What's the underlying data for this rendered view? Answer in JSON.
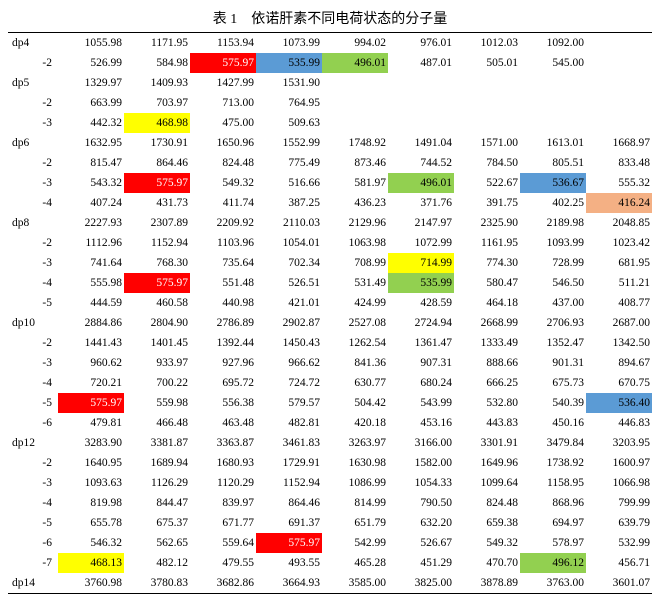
{
  "title": "表 1　依诺肝素不同电荷状态的分子量",
  "colors": {
    "red": "#ff0000",
    "green": "#92d050",
    "yellow": "#ffff00",
    "blue": "#5b9bd5",
    "peach": "#f4b084",
    "white_text": "#ffffff",
    "black_text": "#000000"
  },
  "rows": [
    {
      "label": "dp4",
      "top_border": true,
      "values": [
        "1055.98",
        "1171.95",
        "1153.94",
        "1073.99",
        "994.02",
        "976.01",
        "1012.03",
        "1092.00",
        ""
      ]
    },
    {
      "label": "-2",
      "values": [
        "526.99",
        "584.98",
        "575.97",
        "535.99",
        "496.01",
        "487.01",
        "505.01",
        "545.00",
        ""
      ],
      "hl": {
        "2": "red_w",
        "3": "blue",
        "4": "green"
      }
    },
    {
      "label": "dp5",
      "values": [
        "1329.97",
        "1409.93",
        "1427.99",
        "1531.90",
        "",
        "",
        "",
        "",
        ""
      ]
    },
    {
      "label": "-2",
      "values": [
        "663.99",
        "703.97",
        "713.00",
        "764.95",
        "",
        "",
        "",
        "",
        ""
      ]
    },
    {
      "label": "-3",
      "values": [
        "442.32",
        "468.98",
        "475.00",
        "509.63",
        "",
        "",
        "",
        "",
        ""
      ],
      "hl": {
        "1": "yellow"
      }
    },
    {
      "label": "dp6",
      "values": [
        "1632.95",
        "1730.91",
        "1650.96",
        "1552.99",
        "1748.92",
        "1491.04",
        "1571.00",
        "1613.01",
        "1668.97"
      ]
    },
    {
      "label": "-2",
      "values": [
        "815.47",
        "864.46",
        "824.48",
        "775.49",
        "873.46",
        "744.52",
        "784.50",
        "805.51",
        "833.48"
      ]
    },
    {
      "label": "-3",
      "values": [
        "543.32",
        "575.97",
        "549.32",
        "516.66",
        "581.97",
        "496.01",
        "522.67",
        "536.67",
        "555.32"
      ],
      "hl": {
        "1": "red_w",
        "5": "green",
        "7": "blue"
      }
    },
    {
      "label": "-4",
      "values": [
        "407.24",
        "431.73",
        "411.74",
        "387.25",
        "436.23",
        "371.76",
        "391.75",
        "402.25",
        "416.24"
      ],
      "hl": {
        "8": "peach"
      }
    },
    {
      "label": "dp8",
      "values": [
        "2227.93",
        "2307.89",
        "2209.92",
        "2110.03",
        "2129.96",
        "2147.97",
        "2325.90",
        "2189.98",
        "2048.85"
      ]
    },
    {
      "label": "-2",
      "values": [
        "1112.96",
        "1152.94",
        "1103.96",
        "1054.01",
        "1063.98",
        "1072.99",
        "1161.95",
        "1093.99",
        "1023.42"
      ]
    },
    {
      "label": "-3",
      "values": [
        "741.64",
        "768.30",
        "735.64",
        "702.34",
        "708.99",
        "714.99",
        "774.30",
        "728.99",
        "681.95"
      ],
      "hl": {
        "5": "yellow"
      }
    },
    {
      "label": "-4",
      "values": [
        "555.98",
        "575.97",
        "551.48",
        "526.51",
        "531.49",
        "535.99",
        "580.47",
        "546.50",
        "511.21"
      ],
      "hl": {
        "1": "red_w",
        "5": "green"
      }
    },
    {
      "label": "-5",
      "values": [
        "444.59",
        "460.58",
        "440.98",
        "421.01",
        "424.99",
        "428.59",
        "464.18",
        "437.00",
        "408.77"
      ]
    },
    {
      "label": "dp10",
      "values": [
        "2884.86",
        "2804.90",
        "2786.89",
        "2902.87",
        "2527.08",
        "2724.94",
        "2668.99",
        "2706.93",
        "2687.00"
      ]
    },
    {
      "label": "-2",
      "values": [
        "1441.43",
        "1401.45",
        "1392.44",
        "1450.43",
        "1262.54",
        "1361.47",
        "1333.49",
        "1352.47",
        "1342.50"
      ]
    },
    {
      "label": "-3",
      "values": [
        "960.62",
        "933.97",
        "927.96",
        "966.62",
        "841.36",
        "907.31",
        "888.66",
        "901.31",
        "894.67"
      ]
    },
    {
      "label": "-4",
      "values": [
        "720.21",
        "700.22",
        "695.72",
        "724.72",
        "630.77",
        "680.24",
        "666.25",
        "675.73",
        "670.75"
      ]
    },
    {
      "label": "-5",
      "values": [
        "575.97",
        "559.98",
        "556.38",
        "579.57",
        "504.42",
        "543.99",
        "532.80",
        "540.39",
        "536.40"
      ],
      "hl": {
        "0": "red_w",
        "8": "blue"
      }
    },
    {
      "label": "-6",
      "values": [
        "479.81",
        "466.48",
        "463.48",
        "482.81",
        "420.18",
        "453.16",
        "443.83",
        "450.16",
        "446.83"
      ]
    },
    {
      "label": "dp12",
      "values": [
        "3283.90",
        "3381.87",
        "3363.87",
        "3461.83",
        "3263.97",
        "3166.00",
        "3301.91",
        "3479.84",
        "3203.95"
      ]
    },
    {
      "label": "-2",
      "values": [
        "1640.95",
        "1689.94",
        "1680.93",
        "1729.91",
        "1630.98",
        "1582.00",
        "1649.96",
        "1738.92",
        "1600.97"
      ]
    },
    {
      "label": "-3",
      "values": [
        "1093.63",
        "1126.29",
        "1120.29",
        "1152.94",
        "1086.99",
        "1054.33",
        "1099.64",
        "1158.95",
        "1066.98"
      ]
    },
    {
      "label": "-4",
      "values": [
        "819.98",
        "844.47",
        "839.97",
        "864.46",
        "814.99",
        "790.50",
        "824.48",
        "868.96",
        "799.99"
      ]
    },
    {
      "label": "-5",
      "values": [
        "655.78",
        "675.37",
        "671.77",
        "691.37",
        "651.79",
        "632.20",
        "659.38",
        "694.97",
        "639.79"
      ]
    },
    {
      "label": "-6",
      "values": [
        "546.32",
        "562.65",
        "559.64",
        "575.97",
        "542.99",
        "526.67",
        "549.32",
        "578.97",
        "532.99"
      ],
      "hl": {
        "3": "red_w"
      }
    },
    {
      "label": "-7",
      "values": [
        "468.13",
        "482.12",
        "479.55",
        "493.55",
        "465.28",
        "451.29",
        "470.70",
        "496.12",
        "456.71"
      ],
      "hl": {
        "0": "yellow",
        "7": "green"
      }
    },
    {
      "label": "dp14",
      "bot_border": true,
      "values": [
        "3760.98",
        "3780.83",
        "3682.86",
        "3664.93",
        "3585.00",
        "3825.00",
        "3878.89",
        "3763.00",
        "3601.07"
      ]
    }
  ]
}
